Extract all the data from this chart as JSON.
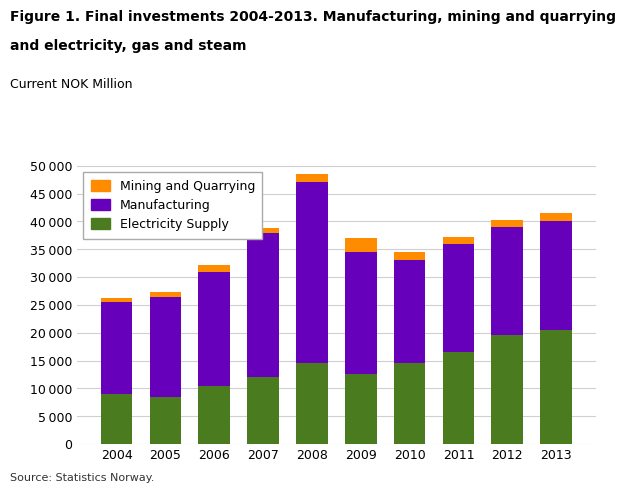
{
  "years": [
    2004,
    2005,
    2006,
    2007,
    2008,
    2009,
    2010,
    2011,
    2012,
    2013
  ],
  "electricity_supply": [
    9000,
    8500,
    10500,
    12000,
    14500,
    12500,
    14500,
    16500,
    19500,
    20500
  ],
  "manufacturing": [
    16500,
    18000,
    20500,
    26000,
    32500,
    22000,
    18500,
    19500,
    19500,
    19500
  ],
  "mining_quarrying": [
    800,
    900,
    1200,
    900,
    1500,
    2500,
    1500,
    1200,
    1200,
    1500
  ],
  "colors": {
    "electricity": "#4a7c1f",
    "manufacturing": "#6600bb",
    "mining": "#ff8c00"
  },
  "title_line1": "Figure 1. Final investments 2004-2013. Manufacturing, mining and quarrying",
  "title_line2": "and electricity, gas and steam",
  "ylabel": "Current NOK Million",
  "ylim": [
    0,
    50000
  ],
  "yticks": [
    0,
    5000,
    10000,
    15000,
    20000,
    25000,
    30000,
    35000,
    40000,
    45000,
    50000
  ],
  "source": "Source: Statistics Norway.",
  "legend_labels": [
    "Mining and Quarrying",
    "Manufacturing",
    "Electricity Supply"
  ],
  "background_color": "#ffffff"
}
